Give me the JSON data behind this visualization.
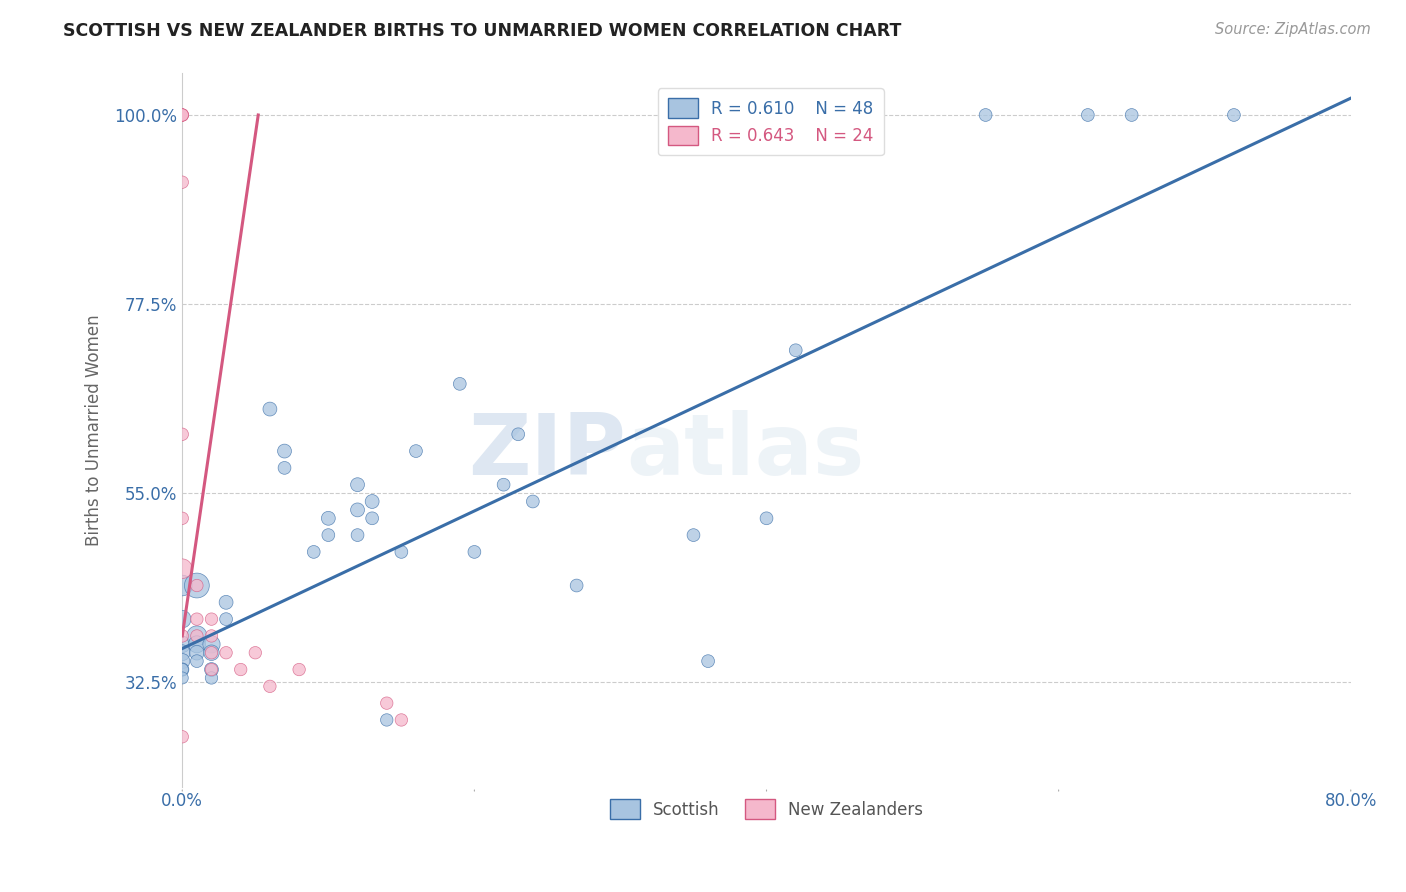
{
  "title": "SCOTTISH VS NEW ZEALANDER BIRTHS TO UNMARRIED WOMEN CORRELATION CHART",
  "source": "Source: ZipAtlas.com",
  "ylabel": "Births to Unmarried Women",
  "xlim": [
    0.0,
    0.8
  ],
  "ylim": [
    0.2,
    1.05
  ],
  "xticks": [
    0.0,
    0.2,
    0.4,
    0.6,
    0.8
  ],
  "xticklabels": [
    "0.0%",
    "",
    "",
    "",
    "80.0%"
  ],
  "ytick_positions": [
    0.325,
    0.55,
    0.775,
    1.0
  ],
  "ytick_labels": [
    "32.5%",
    "55.0%",
    "77.5%",
    "100.0%"
  ],
  "grid_color": "#cccccc",
  "background_color": "#ffffff",
  "blue_color": "#a8c4e0",
  "blue_line_color": "#3a6ea8",
  "pink_color": "#f5b8cc",
  "pink_line_color": "#d45880",
  "legend_blue_label": "R = 0.610    N = 48",
  "legend_pink_label": "R = 0.643    N = 24",
  "watermark_zip": "ZIP",
  "watermark_atlas": "atlas",
  "scottish_label": "Scottish",
  "nz_label": "New Zealanders",
  "scottish_x": [
    0.0,
    0.0,
    0.0,
    0.0,
    0.0,
    0.0,
    0.0,
    0.0,
    0.01,
    0.01,
    0.01,
    0.01,
    0.01,
    0.02,
    0.02,
    0.02,
    0.02,
    0.03,
    0.03,
    0.06,
    0.07,
    0.07,
    0.09,
    0.1,
    0.1,
    0.12,
    0.12,
    0.12,
    0.13,
    0.13,
    0.14,
    0.15,
    0.16,
    0.19,
    0.2,
    0.22,
    0.23,
    0.24,
    0.27,
    0.35,
    0.36,
    0.4,
    0.42,
    0.44,
    0.55,
    0.62,
    0.65,
    0.72
  ],
  "scottish_y": [
    0.44,
    0.4,
    0.37,
    0.36,
    0.35,
    0.34,
    0.34,
    0.33,
    0.44,
    0.38,
    0.37,
    0.36,
    0.35,
    0.37,
    0.36,
    0.34,
    0.33,
    0.42,
    0.4,
    0.65,
    0.6,
    0.58,
    0.48,
    0.52,
    0.5,
    0.56,
    0.53,
    0.5,
    0.54,
    0.52,
    0.28,
    0.48,
    0.6,
    0.68,
    0.48,
    0.56,
    0.62,
    0.54,
    0.44,
    0.5,
    0.35,
    0.52,
    0.72,
    1.0,
    1.0,
    1.0,
    1.0,
    1.0
  ],
  "scottish_sizes": [
    220,
    160,
    140,
    130,
    120,
    90,
    80,
    75,
    320,
    210,
    150,
    110,
    85,
    155,
    125,
    100,
    80,
    100,
    85,
    100,
    100,
    85,
    85,
    100,
    85,
    100,
    100,
    85,
    100,
    85,
    80,
    85,
    85,
    85,
    85,
    85,
    85,
    85,
    85,
    85,
    85,
    85,
    85,
    85,
    85,
    85,
    85,
    85
  ],
  "nz_x": [
    0.0,
    0.0,
    0.0,
    0.0,
    0.0,
    0.0,
    0.0,
    0.0,
    0.0,
    0.0,
    0.01,
    0.01,
    0.01,
    0.02,
    0.02,
    0.02,
    0.02,
    0.03,
    0.04,
    0.05,
    0.06,
    0.08,
    0.14,
    0.15
  ],
  "nz_y": [
    1.0,
    1.0,
    1.0,
    1.0,
    0.92,
    0.62,
    0.52,
    0.46,
    0.38,
    0.26,
    0.44,
    0.4,
    0.38,
    0.4,
    0.38,
    0.36,
    0.34,
    0.36,
    0.34,
    0.36,
    0.32,
    0.34,
    0.3,
    0.28
  ],
  "nz_sizes": [
    80,
    80,
    80,
    80,
    80,
    80,
    80,
    200,
    80,
    80,
    80,
    80,
    80,
    80,
    80,
    80,
    80,
    80,
    80,
    80,
    80,
    80,
    80,
    80
  ],
  "blue_line_x": [
    0.0,
    0.8
  ],
  "blue_line_y": [
    0.365,
    1.02
  ],
  "pink_line_x": [
    0.0,
    0.052
  ],
  "pink_line_y": [
    0.38,
    1.0
  ]
}
